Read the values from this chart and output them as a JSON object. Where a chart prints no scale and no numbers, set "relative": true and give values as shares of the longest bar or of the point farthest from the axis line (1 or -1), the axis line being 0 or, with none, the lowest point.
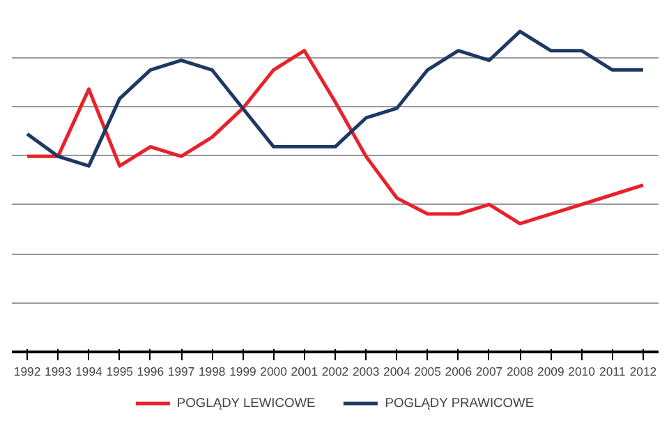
{
  "chart_data": {
    "type": "line",
    "relative": true,
    "grid": "y",
    "legend": "bottom",
    "marker": "none",
    "line_style": "solid",
    "categories": [
      "1992",
      "1993",
      "1994",
      "1995",
      "1996",
      "1997",
      "1998",
      "1999",
      "2000",
      "2001",
      "2002",
      "2003",
      "2004",
      "2005",
      "2006",
      "2007",
      "2008",
      "2009",
      "2010",
      "2011",
      "2012"
    ],
    "series": [
      {
        "name": "POGLĄDY LEWICOWE",
        "color": "#e8212a",
        "values": [
          0.61,
          0.61,
          0.82,
          0.58,
          0.64,
          0.61,
          0.67,
          0.76,
          0.88,
          0.94,
          0.78,
          0.61,
          0.48,
          0.43,
          0.43,
          0.46,
          0.4,
          0.43,
          0.46,
          0.49,
          0.52
        ]
      },
      {
        "name": "POGLĄDY PRAWICOWE",
        "color": "#1f3864",
        "values": [
          0.68,
          0.61,
          0.58,
          0.79,
          0.88,
          0.91,
          0.88,
          0.76,
          0.64,
          0.64,
          0.64,
          0.73,
          0.76,
          0.88,
          0.94,
          0.91,
          1,
          0.94,
          0.94,
          0.88,
          0.88
        ]
      }
    ]
  }
}
